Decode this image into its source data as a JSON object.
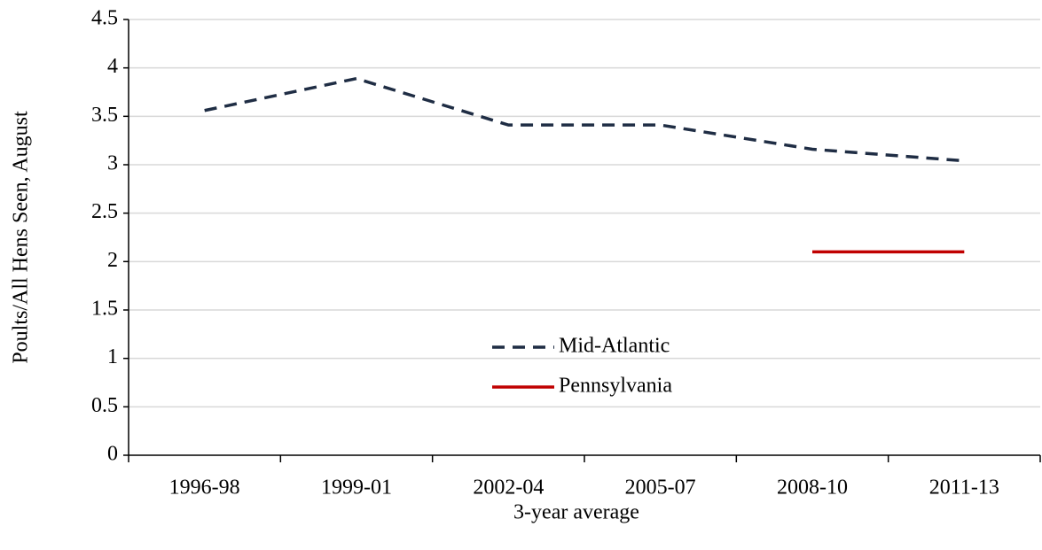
{
  "chart_data": {
    "type": "line",
    "categories": [
      "1996-98",
      "1999-01",
      "2002-04",
      "2005-07",
      "2008-10",
      "2011-13"
    ],
    "series": [
      {
        "name": "Mid-Atlantic",
        "color": "#1f2d44",
        "dash": true,
        "values": [
          3.56,
          3.89,
          3.41,
          3.41,
          3.16,
          3.04
        ]
      },
      {
        "name": "Pennsylvania",
        "color": "#c00000",
        "dash": false,
        "values": [
          null,
          null,
          null,
          null,
          2.1,
          2.1
        ]
      }
    ],
    "xlabel": "3-year average",
    "ylabel": "Poults/All Hens Seen, August",
    "ylim": [
      0,
      4.5
    ],
    "yticks": [
      0,
      0.5,
      1,
      1.5,
      2,
      2.5,
      3,
      3.5,
      4,
      4.5
    ],
    "grid": true,
    "legend": "center"
  }
}
